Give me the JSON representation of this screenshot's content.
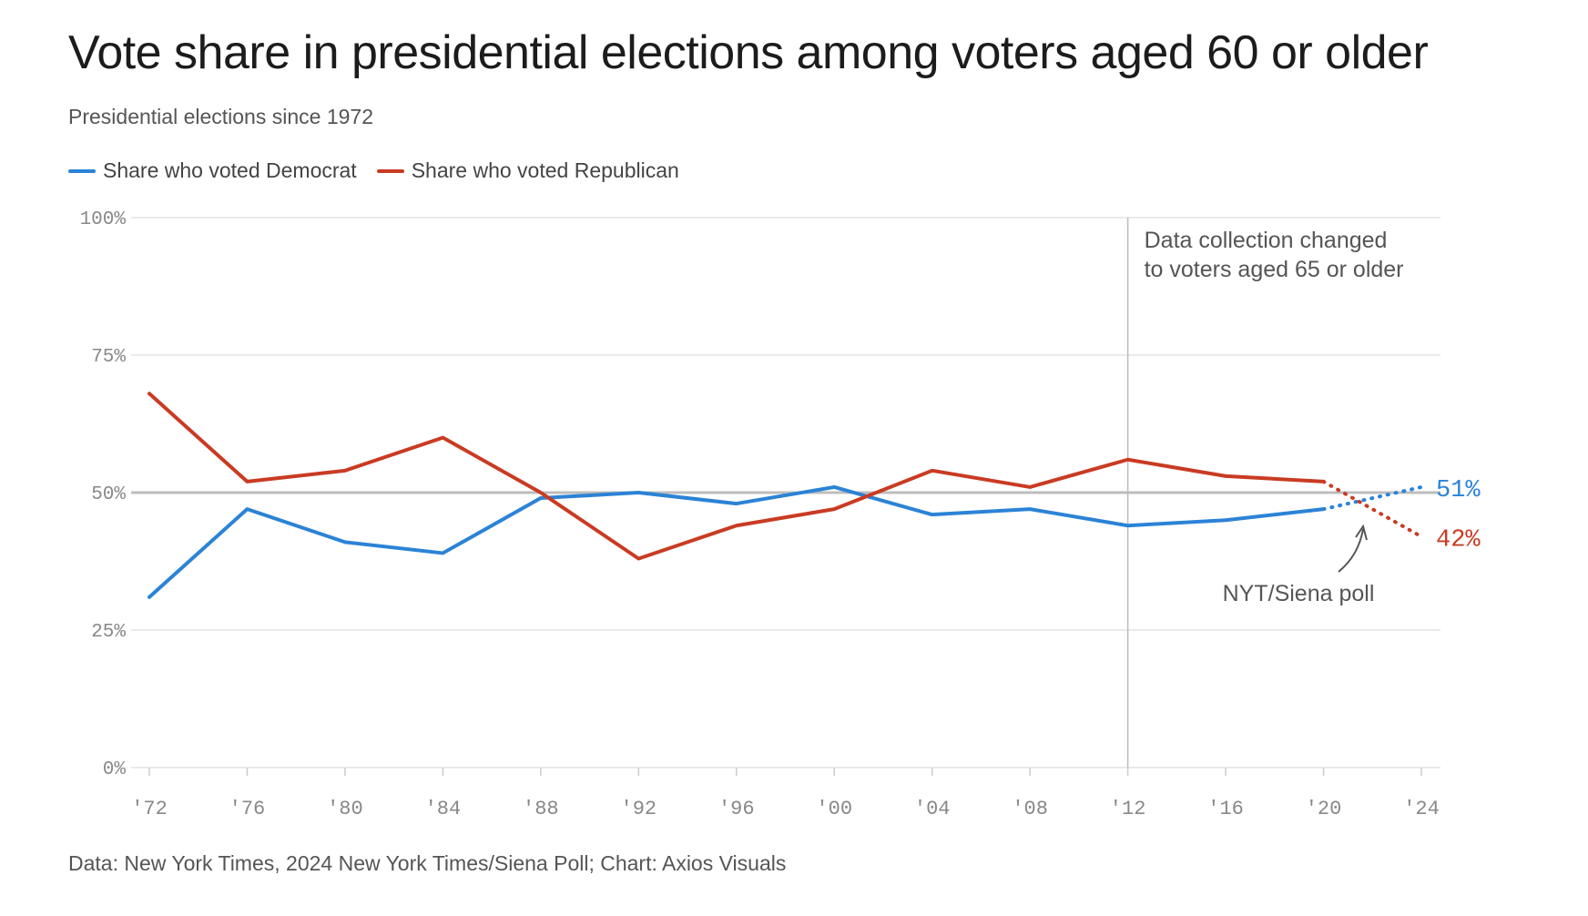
{
  "header": {
    "title": "Vote share in presidential elections among voters aged 60 or older",
    "subtitle": "Presidential elections since 1972"
  },
  "footer": {
    "source": "Data: New York Times, 2024 New York Times/Siena Poll; Chart: Axios Visuals"
  },
  "chart_data": {
    "type": "line",
    "title": "Vote share in presidential elections among voters aged 60 or older",
    "subtitle": "Presidential elections since 1972",
    "x": [
      "'72",
      "'76",
      "'80",
      "'84",
      "'88",
      "'92",
      "'96",
      "'00",
      "'04",
      "'08",
      "'12",
      "'16",
      "'20",
      "'24"
    ],
    "ylim": [
      0,
      100
    ],
    "yticks": [
      0,
      25,
      50,
      75,
      100
    ],
    "ytick_labels": [
      "0%",
      "25%",
      "50%",
      "75%",
      "100%"
    ],
    "grid": true,
    "reference_line": 50,
    "legend_position": "top-left",
    "series": [
      {
        "name": "Share who voted Democrat",
        "color": "#2b83d6",
        "values": [
          31,
          47,
          41,
          39,
          49,
          50,
          48,
          51,
          46,
          47,
          44,
          45,
          47,
          51
        ],
        "dotted_from_index": 12,
        "end_label": "51%"
      },
      {
        "name": "Share who voted Republican",
        "color": "#c93b22",
        "values": [
          68,
          52,
          54,
          60,
          50,
          38,
          44,
          47,
          54,
          51,
          56,
          53,
          52,
          42
        ],
        "dotted_from_index": 12,
        "end_label": "42%"
      }
    ],
    "annotations": [
      {
        "text_lines": [
          "Data collection changed",
          "to voters aged 65 or older"
        ],
        "at_x": "'12",
        "type": "vertical-line"
      },
      {
        "text": "NYT/Siena poll",
        "type": "arrow-label"
      }
    ]
  }
}
